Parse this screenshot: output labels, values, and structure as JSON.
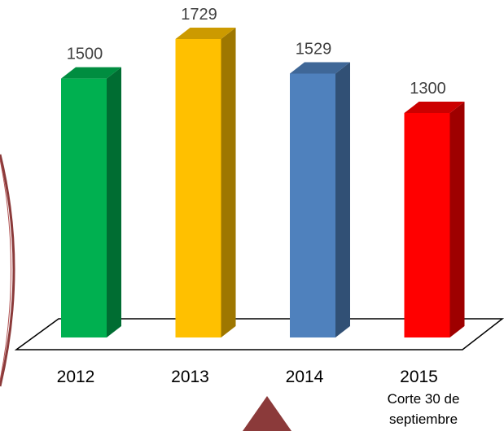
{
  "chart_data": {
    "type": "bar3d",
    "categories": [
      "2012",
      "2013",
      "2014",
      "2015"
    ],
    "values": [
      1500,
      1729,
      1529,
      1300
    ],
    "colors": [
      "#00b050",
      "#ffc000",
      "#4f81bd",
      "#ff0000"
    ],
    "annotation": "Corte 30 de septiembre"
  }
}
